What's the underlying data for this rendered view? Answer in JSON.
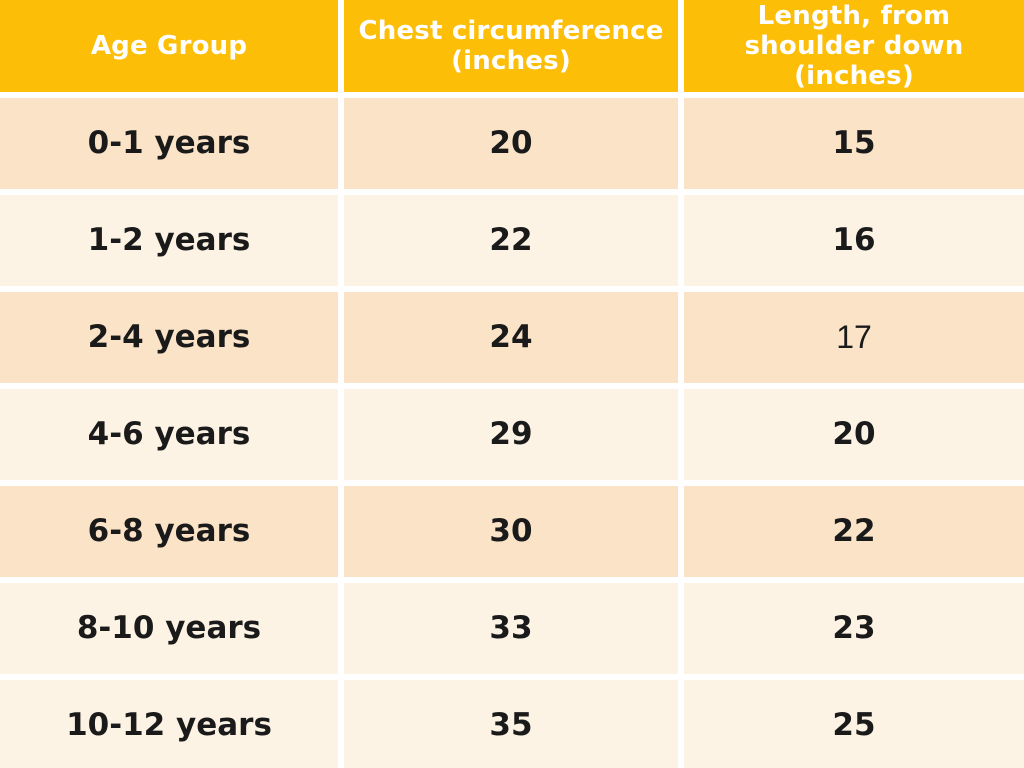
{
  "colors": {
    "header_bg": "#FDBE08",
    "row_peach": "#FAE3C7",
    "row_cream": "#FDF3E5",
    "divider": "#FFFFFF",
    "header_text": "#FFFFFF",
    "body_text": "#1A1A1A"
  },
  "table": {
    "header": {
      "age_label": "Age Group",
      "chest_label": "Chest circumference (inches)",
      "chest_lines": [
        "Chest circumference",
        "(inches)"
      ],
      "length_label": "Length, from shoulder down (inches)",
      "length_lines": [
        "Length, from",
        "shoulder down (inches)"
      ]
    },
    "rows": [
      {
        "age": "0-1 years",
        "chest": "20",
        "length": "15"
      },
      {
        "age": "1-2 years",
        "chest": "22",
        "length": "16"
      },
      {
        "age": "2-4 years",
        "chest": "24",
        "length": "17"
      },
      {
        "age": "4-6 years",
        "chest": "29",
        "length": "20"
      },
      {
        "age": "6-8 years",
        "chest": "30",
        "length": "22"
      },
      {
        "age": "8-10 years",
        "chest": "33",
        "length": "23"
      },
      {
        "age": "10-12 years",
        "chest": "35",
        "length": "25"
      }
    ]
  }
}
